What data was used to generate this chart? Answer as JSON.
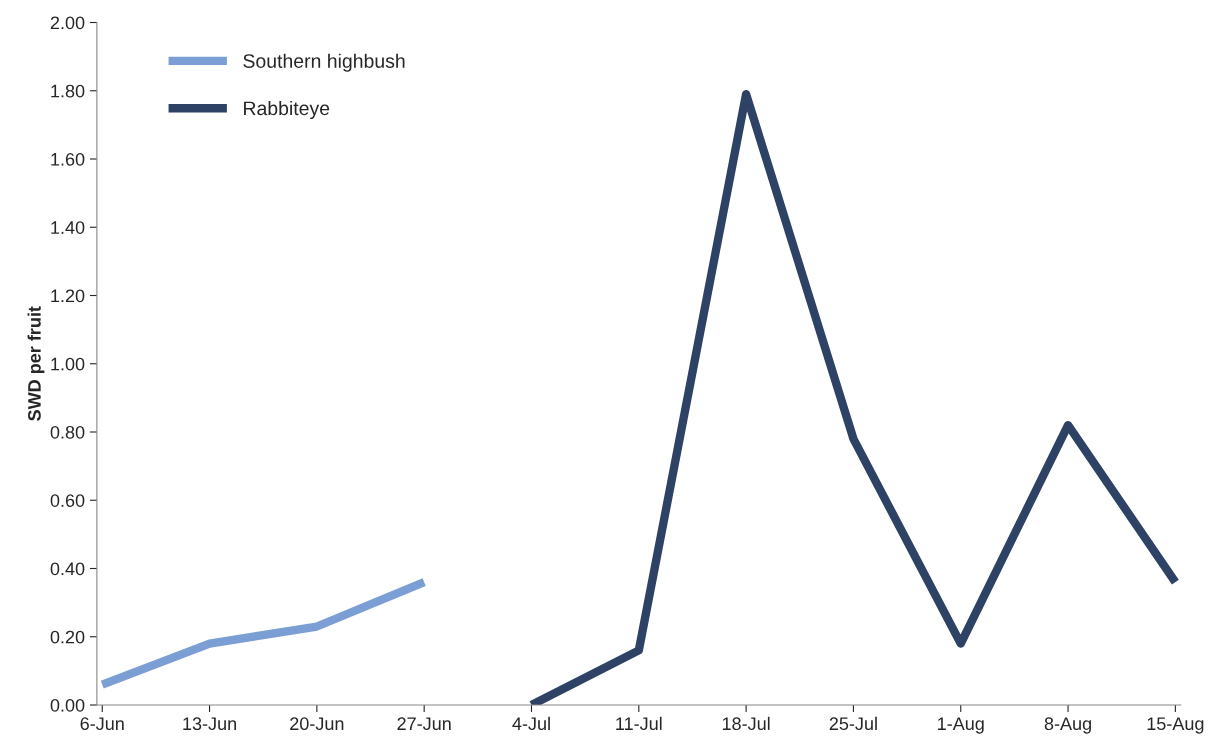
{
  "chart_data": {
    "type": "line",
    "ylabel": "SWD per fruit",
    "categories": [
      "6-Jun",
      "13-Jun",
      "20-Jun",
      "27-Jun",
      "4-Jul",
      "11-Jul",
      "18-Jul",
      "25-Jul",
      "1-Aug",
      "8-Aug",
      "15-Aug"
    ],
    "series": [
      {
        "name": "Southern highbush",
        "color": "#7b9fd4",
        "values": [
          0.06,
          0.18,
          0.23,
          0.36,
          null,
          null,
          null,
          null,
          null,
          null,
          null
        ]
      },
      {
        "name": "Rabbiteye",
        "color": "#2e4266",
        "values": [
          null,
          null,
          null,
          null,
          0.0,
          0.16,
          1.79,
          0.78,
          0.18,
          0.82,
          0.36
        ]
      }
    ],
    "ylim": [
      0,
      2
    ],
    "yticks": [
      {
        "value": 0,
        "label": "0.00"
      },
      {
        "value": 0.2,
        "label": "0.20"
      },
      {
        "value": 0.4,
        "label": "0.40"
      },
      {
        "value": 0.6,
        "label": "0.60"
      },
      {
        "value": 0.8,
        "label": "0.80"
      },
      {
        "value": 1.0,
        "label": "1.00"
      },
      {
        "value": 1.2,
        "label": "1.20"
      },
      {
        "value": 1.4,
        "label": "1.40"
      },
      {
        "value": 1.6,
        "label": "1.60"
      },
      {
        "value": 1.8,
        "label": "1.80"
      },
      {
        "value": 2.0,
        "label": "2.00"
      }
    ],
    "grid": false,
    "legend": "top left",
    "line_style": "solid",
    "marker": "none"
  }
}
